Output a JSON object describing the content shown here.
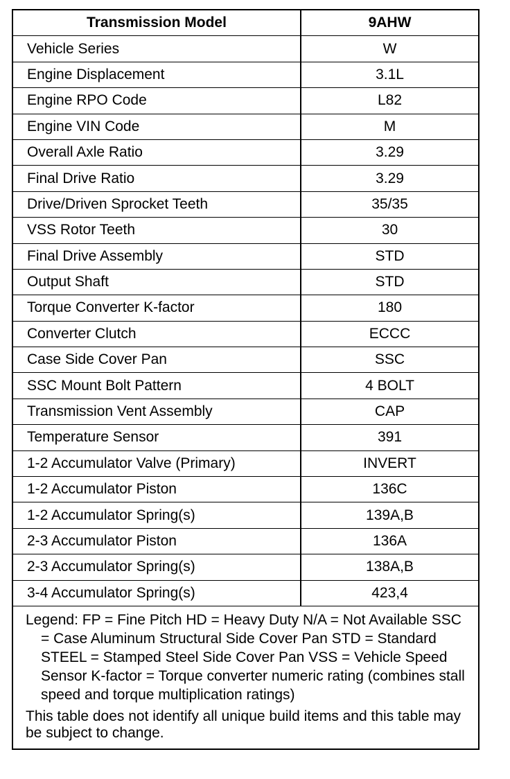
{
  "header": {
    "label": "Transmission Model",
    "value": "9AHW"
  },
  "rows": [
    {
      "label": "Vehicle Series",
      "value": "W"
    },
    {
      "label": "Engine Displacement",
      "value": "3.1L"
    },
    {
      "label": "Engine RPO Code",
      "value": "L82"
    },
    {
      "label": "Engine VIN Code",
      "value": "M"
    },
    {
      "label": "Overall Axle Ratio",
      "value": "3.29"
    },
    {
      "label": "Final Drive Ratio",
      "value": "3.29"
    },
    {
      "label": "Drive/Driven Sprocket Teeth",
      "value": "35/35"
    },
    {
      "label": "VSS Rotor Teeth",
      "value": "30"
    },
    {
      "label": "Final Drive Assembly",
      "value": "STD"
    },
    {
      "label": "Output Shaft",
      "value": "STD"
    },
    {
      "label": "Torque Converter K-factor",
      "value": "180"
    },
    {
      "label": "Converter Clutch",
      "value": "ECCC"
    },
    {
      "label": "Case Side Cover Pan",
      "value": "SSC"
    },
    {
      "label": "SSC Mount Bolt Pattern",
      "value": "4 BOLT"
    },
    {
      "label": "Transmission Vent Assembly",
      "value": "CAP"
    },
    {
      "label": "Temperature Sensor",
      "value": "391"
    },
    {
      "label": "1-2 Accumulator Valve (Primary)",
      "value": "INVERT"
    },
    {
      "label": "1-2 Accumulator Piston",
      "value": "136C"
    },
    {
      "label": "1-2 Accumulator Spring(s)",
      "value": "139A,B"
    },
    {
      "label": "2-3 Accumulator Piston",
      "value": "136A"
    },
    {
      "label": "2-3 Accumulator Spring(s)",
      "value": "138A,B"
    },
    {
      "label": "3-4 Accumulator Spring(s)",
      "value": "423,4"
    }
  ],
  "legend": "Legend: FP = Fine Pitch HD = Heavy Duty N/A = Not Available SSC = Case Aluminum Structural Side Cover Pan STD = Standard STEEL = Stamped Steel Side Cover Pan VSS = Vehicle Speed Sensor K-factor = Torque converter numeric rating (combines stall speed and torque multiplication ratings)",
  "note": "This table does not identify all unique build items and this table may be subject to change."
}
